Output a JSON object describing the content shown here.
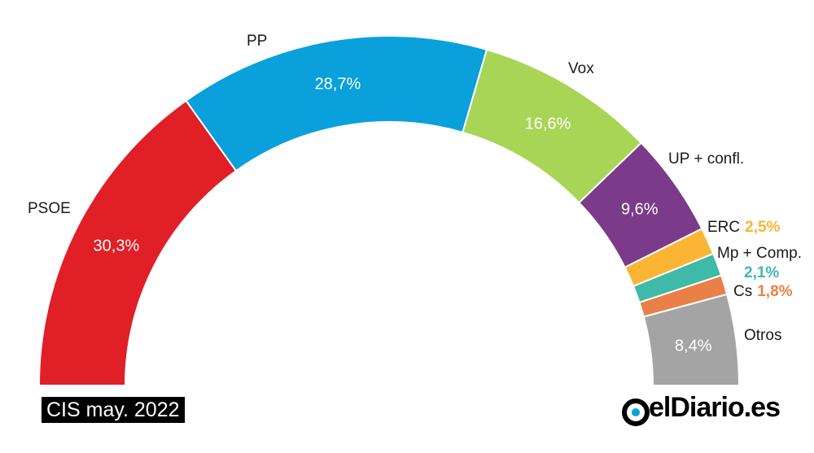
{
  "chart_data": {
    "type": "pie",
    "variant": "semicircle",
    "categories": [
      "PSOE",
      "PP",
      "Vox",
      "UP + confl.",
      "ERC",
      "Mp + Comp.",
      "Cs",
      "Otros"
    ],
    "values": [
      30.3,
      28.7,
      16.6,
      9.6,
      2.5,
      2.1,
      1.8,
      8.4
    ],
    "value_labels": [
      "30,3%",
      "28,7%",
      "16,6%",
      "9,6%",
      "2,5%",
      "2,1%",
      "1,8%",
      "8,4%"
    ],
    "colors": [
      "#e01f26",
      "#0aa0dc",
      "#a8d555",
      "#7b3a8a",
      "#fbb534",
      "#3fb9a8",
      "#ea8048",
      "#a4a4a4"
    ],
    "legend": "none"
  },
  "footer": {
    "source": "CIS may. 2022",
    "brand": "elDiario.es"
  }
}
